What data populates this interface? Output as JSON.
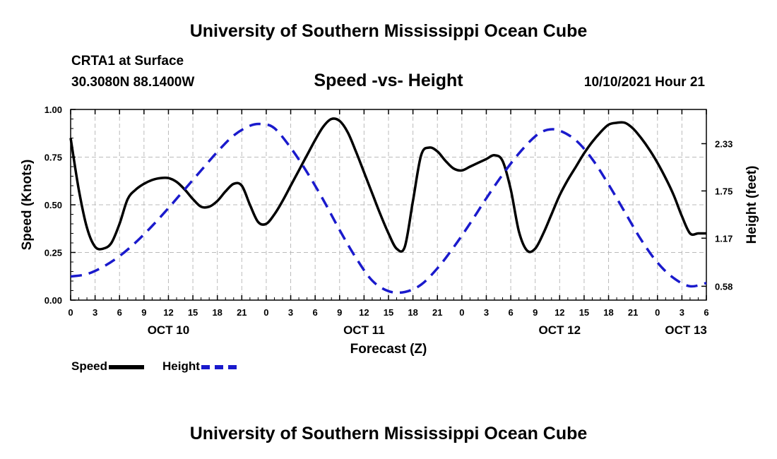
{
  "header": {
    "title": "University of Southern Mississippi Ocean Cube",
    "station": "CRTA1 at Surface",
    "coordinates": "30.3080N  88.1400W",
    "chart_title": "Speed -vs- Height",
    "timestamp": "10/10/2021 Hour 21"
  },
  "footer": {
    "title": "University of Southern Mississippi Ocean Cube"
  },
  "legend": {
    "speed_label": "Speed",
    "height_label": "Height"
  },
  "colors": {
    "speed": "#000000",
    "height": "#1a1acc",
    "grid": "#bbbbbb"
  },
  "chart_data": {
    "type": "line",
    "title": "Speed -vs- Height",
    "xlabel": "Forecast (Z)",
    "ylabel": "Speed (Knots)",
    "y2label": "Height (feet)",
    "x_unit": "hours since OCT 10 00Z",
    "xlim": [
      0,
      78
    ],
    "ylim": [
      0,
      1.0
    ],
    "y2lim": [
      0.41,
      2.75
    ],
    "x_ticks": [
      0,
      3,
      6,
      9,
      12,
      15,
      18,
      21,
      24,
      27,
      30,
      33,
      36,
      39,
      42,
      45,
      48,
      51,
      54,
      57,
      60,
      63,
      66,
      69,
      72,
      75,
      78
    ],
    "x_tick_labels": [
      "0",
      "3",
      "6",
      "9",
      "12",
      "15",
      "18",
      "21",
      "0",
      "3",
      "6",
      "9",
      "12",
      "15",
      "18",
      "21",
      "0",
      "3",
      "6",
      "9",
      "12",
      "15",
      "18",
      "21",
      "0",
      "3",
      "6"
    ],
    "day_labels": [
      {
        "x": 12,
        "label": "OCT 10"
      },
      {
        "x": 36,
        "label": "OCT 11"
      },
      {
        "x": 60,
        "label": "OCT 12"
      },
      {
        "x": 75.5,
        "label": "OCT 13"
      }
    ],
    "y_ticks": [
      0,
      0.25,
      0.5,
      0.75,
      1.0
    ],
    "y_tick_labels": [
      "0.00",
      "0.25",
      "0.50",
      "0.75",
      "1.00"
    ],
    "y2_ticks": [
      0.58,
      1.17,
      1.75,
      2.33
    ],
    "y2_tick_labels": [
      "0.58",
      "1.17",
      "1.75",
      "2.33"
    ],
    "series": [
      {
        "name": "Speed",
        "axis": "left",
        "style": "solid",
        "x": [
          0,
          1,
          2,
          3,
          4,
          5,
          6,
          7,
          8,
          9,
          10,
          11,
          12,
          13,
          14,
          15,
          16,
          17,
          18,
          19,
          20,
          21,
          22,
          23,
          24,
          25,
          26,
          27,
          28,
          29,
          30,
          31,
          32,
          33,
          34,
          35,
          36,
          37,
          38,
          39,
          40,
          41,
          42,
          43,
          44,
          45,
          46,
          47,
          48,
          49,
          50,
          51,
          52,
          53,
          54,
          55,
          56,
          57,
          58,
          59,
          60,
          61,
          62,
          63,
          64,
          65,
          66,
          67,
          68,
          69,
          70,
          71,
          72,
          73,
          74,
          75,
          76,
          77,
          78
        ],
        "values": [
          0.85,
          0.58,
          0.38,
          0.28,
          0.27,
          0.3,
          0.4,
          0.53,
          0.58,
          0.61,
          0.63,
          0.64,
          0.64,
          0.62,
          0.58,
          0.53,
          0.49,
          0.49,
          0.52,
          0.57,
          0.61,
          0.6,
          0.5,
          0.41,
          0.4,
          0.45,
          0.52,
          0.6,
          0.68,
          0.76,
          0.84,
          0.91,
          0.95,
          0.94,
          0.88,
          0.78,
          0.67,
          0.56,
          0.45,
          0.35,
          0.27,
          0.28,
          0.52,
          0.76,
          0.8,
          0.78,
          0.73,
          0.69,
          0.68,
          0.7,
          0.72,
          0.74,
          0.76,
          0.73,
          0.58,
          0.36,
          0.26,
          0.27,
          0.35,
          0.45,
          0.55,
          0.63,
          0.7,
          0.77,
          0.83,
          0.88,
          0.92,
          0.93,
          0.93,
          0.9,
          0.85,
          0.79,
          0.72,
          0.64,
          0.55,
          0.44,
          0.35,
          0.35,
          0.35
        ]
      },
      {
        "name": "Height",
        "axis": "right",
        "style": "dashed",
        "x": [
          0,
          2,
          4,
          6,
          8,
          10,
          12,
          14,
          16,
          18,
          20,
          22,
          23.5,
          25,
          27,
          29,
          31,
          33,
          35,
          37,
          39,
          41,
          43,
          45,
          47,
          49,
          51,
          53,
          55,
          57,
          58.5,
          60,
          62,
          64,
          66,
          68,
          70,
          72,
          74,
          76,
          78
        ],
        "values": [
          0.7,
          0.73,
          0.82,
          0.95,
          1.12,
          1.32,
          1.54,
          1.77,
          2.0,
          2.23,
          2.43,
          2.55,
          2.57,
          2.52,
          2.28,
          1.98,
          1.64,
          1.27,
          0.93,
          0.65,
          0.52,
          0.51,
          0.6,
          0.8,
          1.06,
          1.35,
          1.66,
          1.95,
          2.21,
          2.42,
          2.5,
          2.49,
          2.37,
          2.14,
          1.83,
          1.49,
          1.15,
          0.87,
          0.68,
          0.58,
          0.62
        ]
      }
    ]
  }
}
